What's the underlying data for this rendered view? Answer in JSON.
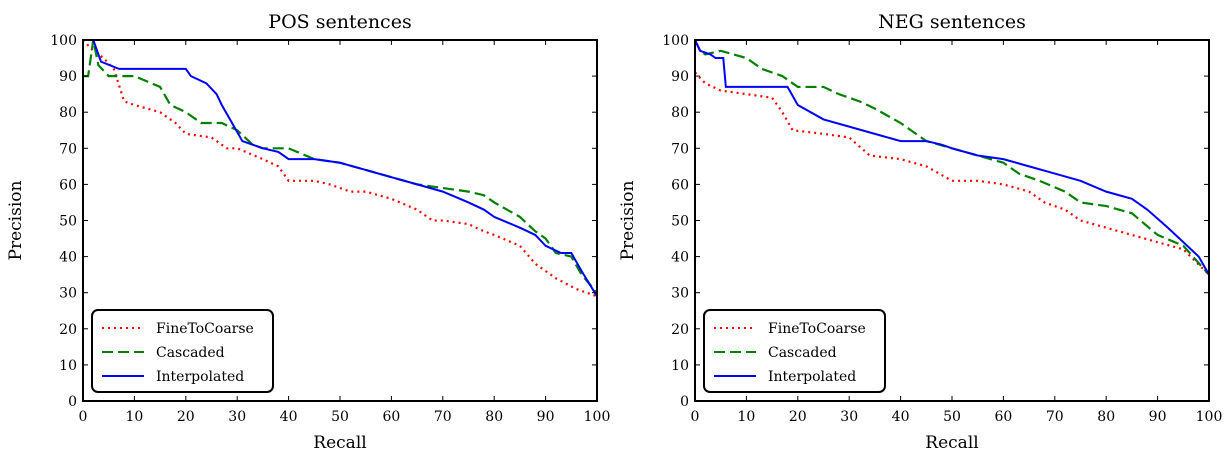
{
  "chart_data": [
    {
      "type": "line",
      "title": "POS sentences",
      "xlabel": "Recall",
      "ylabel": "Precision",
      "xlim": [
        0,
        100
      ],
      "ylim": [
        0,
        100
      ],
      "xticks": [
        0,
        10,
        20,
        30,
        40,
        50,
        60,
        70,
        80,
        90,
        100
      ],
      "yticks": [
        0,
        10,
        20,
        30,
        40,
        50,
        60,
        70,
        80,
        90,
        100
      ],
      "legend_position": "lower-left",
      "series": [
        {
          "name": "FineToCoarse",
          "color": "#ff0000",
          "style": "dotted",
          "x": [
            0,
            2,
            4,
            6,
            8,
            10,
            15,
            18,
            20,
            25,
            28,
            30,
            35,
            38,
            40,
            45,
            48,
            52,
            55,
            60,
            65,
            68,
            70,
            75,
            78,
            80,
            85,
            88,
            92,
            96,
            100
          ],
          "y": [
            100,
            97,
            95,
            92,
            83,
            82,
            80,
            77,
            74,
            73,
            70,
            70,
            67,
            65,
            61,
            61,
            60,
            58,
            58,
            56,
            53,
            50,
            50,
            49,
            47,
            46,
            43,
            38,
            34,
            31,
            29
          ]
        },
        {
          "name": "Cascaded",
          "color": "#008000",
          "style": "dashed",
          "x": [
            0,
            1,
            2,
            3,
            5,
            10,
            15,
            17,
            20,
            23,
            27,
            30,
            33,
            35,
            40,
            45,
            50,
            55,
            60,
            65,
            70,
            75,
            78,
            80,
            85,
            88,
            90,
            92,
            95,
            97,
            100
          ],
          "y": [
            90,
            90,
            100,
            93,
            90,
            90,
            87,
            82,
            80,
            77,
            77,
            75,
            71,
            70,
            70,
            67,
            66,
            64,
            62,
            60,
            59,
            58,
            57,
            55,
            51,
            47,
            45,
            41,
            40,
            35,
            30
          ]
        },
        {
          "name": "Interpolated",
          "color": "#0000ff",
          "style": "solid",
          "x": [
            0,
            2,
            3,
            3.5,
            7,
            20,
            21,
            24,
            26,
            27,
            29,
            31,
            33,
            35,
            38,
            40,
            45,
            50,
            55,
            60,
            65,
            70,
            75,
            78,
            80,
            85,
            88,
            90,
            93,
            95,
            97,
            100
          ],
          "y": [
            100,
            100,
            96,
            94,
            92,
            92,
            90,
            88,
            85,
            82,
            77,
            72,
            71,
            70,
            69,
            67,
            67,
            66,
            64,
            62,
            60,
            58,
            55,
            53,
            51,
            48,
            46,
            43,
            41,
            41,
            36,
            29
          ]
        }
      ]
    },
    {
      "type": "line",
      "title": "NEG sentences",
      "xlabel": "Recall",
      "ylabel": "Precision",
      "xlim": [
        0,
        100
      ],
      "ylim": [
        0,
        100
      ],
      "xticks": [
        0,
        10,
        20,
        30,
        40,
        50,
        60,
        70,
        80,
        90,
        100
      ],
      "yticks": [
        0,
        10,
        20,
        30,
        40,
        50,
        60,
        70,
        80,
        90,
        100
      ],
      "legend_position": "lower-left",
      "series": [
        {
          "name": "FineToCoarse",
          "color": "#ff0000",
          "style": "dotted",
          "x": [
            0,
            2,
            5,
            10,
            15,
            17,
            19,
            25,
            30,
            34,
            40,
            45,
            50,
            55,
            60,
            65,
            68,
            72,
            75,
            80,
            85,
            90,
            95,
            100
          ],
          "y": [
            91,
            88,
            86,
            85,
            84,
            80,
            75,
            74,
            73,
            68,
            67,
            65,
            61,
            61,
            60,
            58,
            55,
            53,
            50,
            48,
            46,
            44,
            42,
            35
          ]
        },
        {
          "name": "Cascaded",
          "color": "#008000",
          "style": "dashed",
          "x": [
            0,
            1,
            2,
            5,
            10,
            13,
            17,
            20,
            25,
            28,
            32,
            35,
            40,
            45,
            50,
            55,
            60,
            63,
            67,
            72,
            75,
            80,
            85,
            90,
            95,
            100
          ],
          "y": [
            100,
            97,
            96,
            97,
            95,
            92,
            90,
            87,
            87,
            85,
            83,
            81,
            77,
            72,
            70,
            68,
            66,
            63,
            61,
            58,
            55,
            54,
            52,
            46,
            43,
            35
          ]
        },
        {
          "name": "Interpolated",
          "color": "#0000ff",
          "style": "solid",
          "x": [
            0,
            1,
            3,
            4,
            5.5,
            6,
            18,
            20,
            25,
            30,
            35,
            40,
            45,
            48,
            50,
            55,
            60,
            65,
            70,
            75,
            80,
            85,
            88,
            92,
            95,
            98,
            100
          ],
          "y": [
            100,
            97,
            96,
            95,
            95,
            87,
            87,
            82,
            78,
            76,
            74,
            72,
            72,
            71,
            70,
            68,
            67,
            65,
            63,
            61,
            58,
            56,
            53,
            48,
            44,
            40,
            35
          ]
        }
      ]
    }
  ]
}
